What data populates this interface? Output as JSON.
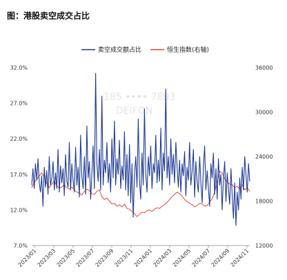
{
  "title": "图：港股卖空成交占比",
  "chart_data": {
    "type": "line",
    "legend_position": "top-center",
    "grid": false,
    "x_tick_labels": [
      "2023/01",
      "2023/03",
      "2023/05",
      "2023/07",
      "2023/09",
      "2023/11",
      "2024/01",
      "2024/03",
      "2024/05",
      "2024/07",
      "2024/09",
      "2024/11"
    ],
    "y_left": {
      "min": 7.0,
      "max": 32.0,
      "ticks": [
        "7.0%",
        "12.0%",
        "17.0%",
        "22.0%",
        "27.0%",
        "32.0%"
      ]
    },
    "y_right": {
      "min": 12000,
      "max": 36000,
      "ticks": [
        "12000",
        "18000",
        "24000",
        "30000",
        "36000"
      ]
    },
    "series": [
      {
        "name": "卖空成交额占比",
        "axis": "left",
        "color": "#1f3a93",
        "points": [
          [
            0,
            15.5
          ],
          [
            0.25,
            17.8
          ],
          [
            0.5,
            15.0
          ],
          [
            0.75,
            18.5
          ],
          [
            1,
            16.2
          ],
          [
            1.25,
            19.2
          ],
          [
            1.5,
            15.8
          ],
          [
            1.75,
            14.5
          ],
          [
            2,
            16.8
          ],
          [
            2.25,
            12.5
          ],
          [
            2.5,
            18.0
          ],
          [
            2.75,
            15.2
          ],
          [
            3,
            17.5
          ],
          [
            3.25,
            14.2
          ],
          [
            3.5,
            19.5
          ],
          [
            3.75,
            15.5
          ],
          [
            4,
            16.5
          ],
          [
            4.25,
            18.8
          ],
          [
            4.5,
            14.8
          ],
          [
            4.75,
            17.2
          ],
          [
            5,
            15.0
          ],
          [
            5.25,
            20.5
          ],
          [
            5.5,
            14.5
          ],
          [
            5.75,
            18.2
          ],
          [
            6,
            15.8
          ],
          [
            6.25,
            17.8
          ],
          [
            6.5,
            14.0
          ],
          [
            6.75,
            19.8
          ],
          [
            7,
            16.0
          ],
          [
            7.25,
            15.2
          ],
          [
            7.5,
            21.5
          ],
          [
            7.75,
            14.8
          ],
          [
            8,
            18.5
          ],
          [
            8.25,
            16.2
          ],
          [
            8.5,
            14.5
          ],
          [
            8.75,
            20.8
          ],
          [
            9,
            15.5
          ],
          [
            9.25,
            18.0
          ],
          [
            9.5,
            13.8
          ],
          [
            9.75,
            22.5
          ],
          [
            10,
            16.8
          ],
          [
            10.25,
            15.0
          ],
          [
            10.5,
            19.5
          ],
          [
            10.75,
            14.2
          ],
          [
            11,
            23.8
          ],
          [
            11.25,
            16.5
          ],
          [
            11.5,
            18.8
          ],
          [
            11.75,
            13.5
          ],
          [
            12,
            17.2
          ],
          [
            12.25,
            21.0
          ],
          [
            12.5,
            15.0
          ],
          [
            12.75,
            31.2
          ],
          [
            13,
            18.5
          ],
          [
            13.25,
            16.0
          ],
          [
            13.5,
            20.5
          ],
          [
            13.75,
            14.8
          ],
          [
            14,
            28.0
          ],
          [
            14.25,
            15.5
          ],
          [
            14.5,
            19.0
          ],
          [
            14.75,
            17.2
          ],
          [
            15,
            21.5
          ],
          [
            15.25,
            15.8
          ],
          [
            15.5,
            18.5
          ],
          [
            15.75,
            14.5
          ],
          [
            16,
            22.0
          ],
          [
            16.25,
            16.5
          ],
          [
            16.5,
            24.5
          ],
          [
            16.75,
            15.5
          ],
          [
            17,
            19.2
          ],
          [
            17.25,
            17.0
          ],
          [
            17.5,
            21.8
          ],
          [
            17.75,
            15.0
          ],
          [
            18,
            18.2
          ],
          [
            18.25,
            16.2
          ],
          [
            18.5,
            23.0
          ],
          [
            18.75,
            14.8
          ],
          [
            19,
            19.8
          ],
          [
            19.25,
            14.0
          ],
          [
            19.5,
            21.2
          ],
          [
            19.75,
            13.0
          ],
          [
            20,
            18.5
          ],
          [
            20.25,
            11.0
          ],
          [
            20.5,
            16.8
          ],
          [
            20.75,
            19.5
          ],
          [
            21,
            15.2
          ],
          [
            21.25,
            24.8
          ],
          [
            21.5,
            16.0
          ],
          [
            21.75,
            13.5
          ],
          [
            22,
            20.0
          ],
          [
            22.25,
            15.5
          ],
          [
            22.5,
            26.2
          ],
          [
            22.75,
            17.0
          ],
          [
            23,
            14.5
          ],
          [
            23.25,
            19.5
          ],
          [
            23.5,
            16.8
          ],
          [
            23.75,
            21.0
          ],
          [
            24,
            15.0
          ],
          [
            24.25,
            18.5
          ],
          [
            24.5,
            17.2
          ],
          [
            24.75,
            22.5
          ],
          [
            25,
            15.8
          ],
          [
            25.25,
            19.0
          ],
          [
            25.5,
            16.0
          ],
          [
            25.75,
            23.5
          ],
          [
            26,
            14.8
          ],
          [
            26.25,
            20.0
          ],
          [
            26.5,
            17.5
          ],
          [
            26.75,
            29.0
          ],
          [
            27,
            16.5
          ],
          [
            27.25,
            19.5
          ],
          [
            27.5,
            15.5
          ],
          [
            27.75,
            22.0
          ],
          [
            28,
            17.0
          ],
          [
            28.25,
            19.8
          ],
          [
            28.5,
            15.8
          ],
          [
            28.75,
            21.5
          ],
          [
            29,
            18.0
          ],
          [
            29.25,
            15.2
          ],
          [
            29.5,
            19.0
          ],
          [
            29.75,
            14.5
          ],
          [
            30,
            18.5
          ],
          [
            30.25,
            16.8
          ],
          [
            30.5,
            20.2
          ],
          [
            30.75,
            14.0
          ],
          [
            31,
            18.0
          ],
          [
            31.25,
            16.2
          ],
          [
            31.5,
            21.5
          ],
          [
            31.75,
            15.5
          ],
          [
            32,
            17.5
          ],
          [
            32.25,
            20.5
          ],
          [
            32.5,
            13.8
          ],
          [
            32.75,
            18.8
          ],
          [
            33,
            16.0
          ],
          [
            33.25,
            14.5
          ],
          [
            33.5,
            19.5
          ],
          [
            33.75,
            15.8
          ],
          [
            34,
            13.0
          ],
          [
            34.25,
            18.0
          ],
          [
            34.5,
            21.0
          ],
          [
            34.75,
            14.8
          ],
          [
            35,
            17.5
          ],
          [
            35.25,
            15.0
          ],
          [
            35.5,
            12.5
          ],
          [
            35.75,
            18.5
          ],
          [
            36,
            16.5
          ],
          [
            36.25,
            20.0
          ],
          [
            36.5,
            14.2
          ],
          [
            36.75,
            17.8
          ],
          [
            37,
            13.5
          ],
          [
            37.25,
            19.2
          ],
          [
            37.5,
            15.5
          ],
          [
            37.75,
            17.0
          ],
          [
            38,
            12.0
          ],
          [
            38.25,
            16.5
          ],
          [
            38.5,
            18.8
          ],
          [
            38.75,
            13.2
          ],
          [
            39,
            17.2
          ],
          [
            39.25,
            15.0
          ],
          [
            39.5,
            12.8
          ],
          [
            39.75,
            17.8
          ],
          [
            40,
            14.0
          ],
          [
            40.25,
            10.8
          ],
          [
            40.5,
            15.8
          ],
          [
            40.75,
            9.8
          ],
          [
            41,
            14.5
          ],
          [
            41.25,
            12.0
          ],
          [
            41.5,
            16.5
          ],
          [
            41.75,
            13.5
          ],
          [
            42,
            18.0
          ],
          [
            42.25,
            14.8
          ],
          [
            42.5,
            19.5
          ],
          [
            42.75,
            16.8
          ],
          [
            43,
            14.5
          ],
          [
            43.25,
            18.5
          ],
          [
            43.5,
            16.0
          ]
        ]
      },
      {
        "name": "恒生指数(右轴)",
        "axis": "right",
        "color": "#e0493a",
        "points": [
          [
            0,
            19800
          ],
          [
            0.5,
            20500
          ],
          [
            1,
            20900
          ],
          [
            1.5,
            21400
          ],
          [
            2,
            21800
          ],
          [
            2.5,
            21200
          ],
          [
            3,
            20400
          ],
          [
            3.5,
            19800
          ],
          [
            4,
            20300
          ],
          [
            4.5,
            20700
          ],
          [
            5,
            20100
          ],
          [
            5.5,
            19700
          ],
          [
            6,
            19900
          ],
          [
            6.5,
            20200
          ],
          [
            7,
            19800
          ],
          [
            7.5,
            19600
          ],
          [
            8,
            19900
          ],
          [
            8.5,
            19500
          ],
          [
            9,
            19200
          ],
          [
            9.5,
            19100
          ],
          [
            10,
            18800
          ],
          [
            10.5,
            19300
          ],
          [
            11,
            19600
          ],
          [
            11.5,
            19400
          ],
          [
            12,
            19000
          ],
          [
            12.5,
            18900
          ],
          [
            13,
            19300
          ],
          [
            13.5,
            19500
          ],
          [
            14,
            18600
          ],
          [
            14.5,
            18200
          ],
          [
            15,
            18400
          ],
          [
            15.5,
            18000
          ],
          [
            16,
            17600
          ],
          [
            16.5,
            17700
          ],
          [
            17,
            17300
          ],
          [
            17.5,
            17500
          ],
          [
            18,
            17200
          ],
          [
            18.5,
            17600
          ],
          [
            19,
            17000
          ],
          [
            19.5,
            16900
          ],
          [
            20,
            16600
          ],
          [
            20.5,
            16300
          ],
          [
            21,
            15900
          ],
          [
            21.5,
            16200
          ],
          [
            22,
            16500
          ],
          [
            22.5,
            16400
          ],
          [
            23,
            16700
          ],
          [
            23.5,
            16800
          ],
          [
            24,
            16600
          ],
          [
            24.5,
            16900
          ],
          [
            25,
            17100
          ],
          [
            25.5,
            17000
          ],
          [
            26,
            17300
          ],
          [
            26.5,
            17500
          ],
          [
            27,
            17800
          ],
          [
            27.5,
            18200
          ],
          [
            28,
            18600
          ],
          [
            28.5,
            18900
          ],
          [
            29,
            19200
          ],
          [
            29.5,
            19000
          ],
          [
            30,
            18700
          ],
          [
            30.5,
            18200
          ],
          [
            31,
            17900
          ],
          [
            31.5,
            17700
          ],
          [
            32,
            17500
          ],
          [
            32.5,
            17200
          ],
          [
            33,
            17400
          ],
          [
            33.5,
            17700
          ],
          [
            34,
            17600
          ],
          [
            34.5,
            17300
          ],
          [
            35,
            17400
          ],
          [
            35.5,
            17900
          ],
          [
            36,
            18300
          ],
          [
            36.5,
            19200
          ],
          [
            37,
            20600
          ],
          [
            37.5,
            22000
          ],
          [
            38,
            21800
          ],
          [
            38.5,
            21000
          ],
          [
            39,
            20600
          ],
          [
            39.5,
            20300
          ],
          [
            40,
            20200
          ],
          [
            40.5,
            19800
          ],
          [
            41,
            20000
          ],
          [
            41.5,
            19600
          ],
          [
            42,
            20200
          ],
          [
            42.5,
            19500
          ],
          [
            43,
            19800
          ],
          [
            43.5,
            19300
          ]
        ]
      }
    ],
    "x_max": 43.5
  }
}
